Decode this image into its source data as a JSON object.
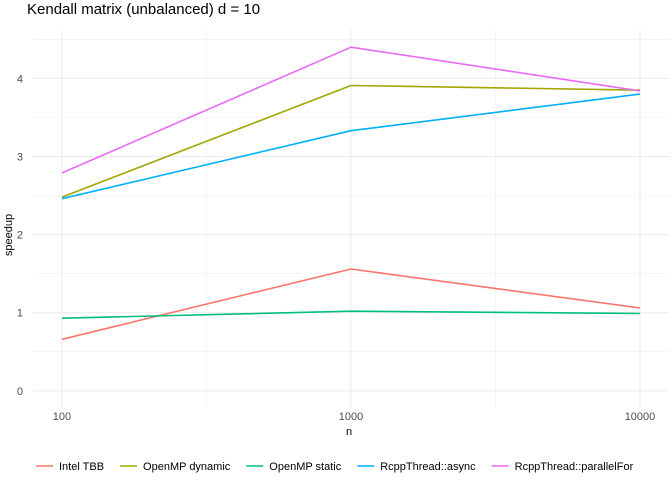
{
  "chart_data": {
    "type": "line",
    "title": "Kendall matrix (unbalanced) d = 10",
    "xlabel": "n",
    "ylabel": "speedup",
    "x": [
      100,
      1000,
      10000
    ],
    "x_scale": "log10",
    "x_ticks": [
      "100",
      "1000",
      "10000"
    ],
    "y_ticks": [
      "0",
      "1",
      "2",
      "3",
      "4"
    ],
    "xlim": [
      79.4,
      12600
    ],
    "ylim": [
      -0.22,
      4.62
    ],
    "grid": true,
    "legend_position": "bottom",
    "series": [
      {
        "name": "Intel TBB",
        "color": "#F8766D",
        "values": [
          0.66,
          1.56,
          1.06
        ]
      },
      {
        "name": "OpenMP dynamic",
        "color": "#A3A500",
        "values": [
          2.48,
          3.91,
          3.85
        ]
      },
      {
        "name": "OpenMP static",
        "color": "#00BF7D",
        "values": [
          0.93,
          1.02,
          0.99
        ]
      },
      {
        "name": "RcppThread::async",
        "color": "#00B0F6",
        "values": [
          2.46,
          3.33,
          3.8
        ]
      },
      {
        "name": "RcppThread::parallelFor",
        "color": "#E76BF3",
        "values": [
          2.79,
          4.4,
          3.84
        ]
      }
    ]
  }
}
